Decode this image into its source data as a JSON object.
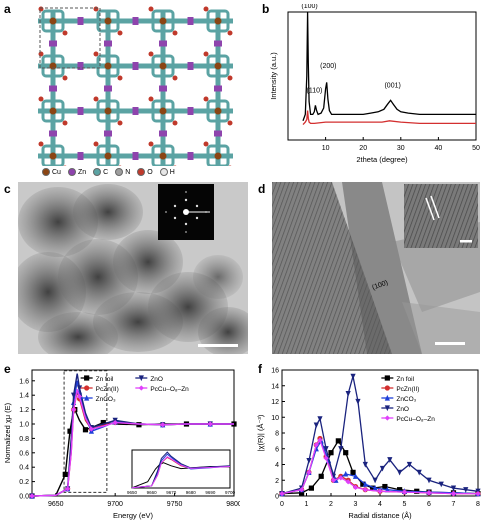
{
  "panels": {
    "a": {
      "label": "a",
      "legend": [
        {
          "symbol": "Cu",
          "color": "#8B4513"
        },
        {
          "symbol": "Zn",
          "color": "#8E44AD"
        },
        {
          "symbol": "C",
          "color": "#5BA3A3"
        },
        {
          "symbol": "N",
          "color": "#9E9E9E"
        },
        {
          "symbol": "O",
          "color": "#C0392B"
        },
        {
          "symbol": "H",
          "color": "#E6E6E6"
        }
      ]
    },
    "b": {
      "label": "b",
      "peak_labels": [
        "(100)",
        "(110)",
        "(200)",
        "(001)"
      ]
    },
    "c": {
      "label": "c"
    },
    "d": {
      "label": "d",
      "annotation": "(100)"
    },
    "e": {
      "label": "e"
    },
    "f": {
      "label": "f"
    }
  },
  "chart_data": [
    {
      "id": "b",
      "type": "line",
      "xlabel": "2theta (degree)",
      "ylabel": "Intensity (a.u.)",
      "xlim": [
        0,
        50
      ],
      "xticks": [
        10,
        20,
        30,
        40,
        50
      ],
      "series": [
        {
          "color": "#000000",
          "x": [
            4.0,
            4.6,
            5.0,
            5.2,
            5.4,
            5.6,
            6.0,
            6.6,
            7.0,
            7.3,
            7.6,
            8.0,
            8.8,
            9.5,
            10.0,
            10.3,
            10.6,
            11.0,
            11.6,
            12.5,
            14,
            16,
            18,
            20,
            22,
            24,
            25.5,
            26.5,
            27.3,
            28.0,
            29,
            30,
            32,
            35,
            40,
            45,
            50
          ],
          "y": [
            0.15,
            0.2,
            0.5,
            1.0,
            0.6,
            0.3,
            0.2,
            0.2,
            0.22,
            0.27,
            0.23,
            0.2,
            0.21,
            0.25,
            0.4,
            0.45,
            0.32,
            0.23,
            0.2,
            0.2,
            0.2,
            0.2,
            0.2,
            0.2,
            0.21,
            0.22,
            0.24,
            0.28,
            0.31,
            0.28,
            0.24,
            0.22,
            0.21,
            0.2,
            0.2,
            0.2,
            0.2
          ]
        },
        {
          "color": "#D32F2F",
          "x": [
            4.0,
            4.6,
            5.0,
            5.2,
            5.4,
            5.6,
            6.0,
            7,
            10,
            15,
            20,
            25,
            27,
            30,
            35,
            40,
            45,
            50
          ],
          "y": [
            0.12,
            0.14,
            0.16,
            0.23,
            0.17,
            0.14,
            0.13,
            0.13,
            0.14,
            0.14,
            0.14,
            0.14,
            0.15,
            0.14,
            0.13,
            0.13,
            0.13,
            0.13
          ]
        }
      ]
    },
    {
      "id": "e",
      "type": "line",
      "xlabel": "Energy (eV)",
      "ylabel": "Normalized χμ (E)",
      "xlim": [
        9630,
        9800
      ],
      "ylim": [
        0,
        1.75
      ],
      "xticks": [
        9650,
        9700,
        9750,
        9800
      ],
      "yticks": [
        0.0,
        0.2,
        0.4,
        0.6,
        0.8,
        1.0,
        1.2,
        1.4,
        1.6
      ],
      "legend": [
        "Zn foil",
        "PcZn(II)",
        "ZnCO₃",
        "ZnO",
        "PcCu–O₈–Zn"
      ],
      "inset_xticks": [
        "9650",
        "9660",
        "9670",
        "9680",
        "9690",
        "9700"
      ],
      "series": [
        {
          "name": "Zn foil",
          "color": "#000000",
          "marker": "square",
          "x": [
            9630,
            9650,
            9658,
            9660,
            9662,
            9664,
            9666,
            9670,
            9675,
            9680,
            9690,
            9700,
            9720,
            9740,
            9760,
            9780,
            9800
          ],
          "y": [
            0.0,
            0.01,
            0.3,
            0.6,
            0.9,
            1.1,
            1.2,
            1.05,
            0.92,
            0.95,
            1.02,
            1.0,
            0.99,
            1.0,
            1.0,
            1.0,
            1.0
          ]
        },
        {
          "name": "PcZn(II)",
          "color": "#D32F2F",
          "marker": "circle",
          "x": [
            9630,
            9650,
            9660,
            9663,
            9665,
            9668,
            9670,
            9675,
            9680,
            9690,
            9700,
            9720,
            9740,
            9760,
            9780,
            9800
          ],
          "y": [
            0.0,
            0.01,
            0.1,
            0.6,
            1.2,
            1.45,
            1.35,
            1.05,
            0.93,
            0.98,
            1.02,
            1.0,
            0.99,
            1.0,
            1.0,
            1.0
          ]
        },
        {
          "name": "ZnCO₃",
          "color": "#1E3FD9",
          "marker": "triangle",
          "x": [
            9630,
            9650,
            9660,
            9663,
            9665,
            9668,
            9670,
            9675,
            9680,
            9690,
            9700,
            9720,
            9740,
            9760,
            9780,
            9800
          ],
          "y": [
            0.0,
            0.01,
            0.1,
            0.7,
            1.3,
            1.6,
            1.45,
            1.1,
            0.9,
            0.96,
            1.03,
            1.0,
            0.99,
            1.0,
            1.0,
            1.0
          ]
        },
        {
          "name": "ZnO",
          "color": "#1A237E",
          "marker": "invtriangle",
          "x": [
            9630,
            9650,
            9660,
            9663,
            9665,
            9668,
            9670,
            9675,
            9680,
            9690,
            9700,
            9720,
            9740,
            9760,
            9780,
            9800
          ],
          "y": [
            0.0,
            0.01,
            0.1,
            0.8,
            1.4,
            1.7,
            1.5,
            1.15,
            0.95,
            1.0,
            1.05,
            1.0,
            0.99,
            1.0,
            1.0,
            1.0
          ]
        },
        {
          "name": "PcCu–O₈–Zn",
          "color": "#E040FB",
          "marker": "diamond",
          "x": [
            9630,
            9650,
            9660,
            9663,
            9665,
            9668,
            9670,
            9675,
            9680,
            9690,
            9700,
            9720,
            9740,
            9760,
            9780,
            9800
          ],
          "y": [
            0.0,
            0.01,
            0.1,
            0.6,
            1.2,
            1.48,
            1.38,
            1.08,
            0.93,
            0.97,
            1.02,
            1.0,
            0.99,
            1.0,
            1.0,
            1.0
          ]
        }
      ]
    },
    {
      "id": "f",
      "type": "line",
      "xlabel": "Radial distance (Å)",
      "ylabel": "|χ(R)| (Å⁻³)",
      "xlim": [
        0,
        8
      ],
      "ylim": [
        0,
        16
      ],
      "xticks": [
        0,
        1,
        2,
        3,
        4,
        5,
        6,
        7,
        8
      ],
      "yticks": [
        0,
        2,
        4,
        6,
        8,
        10,
        12,
        14,
        16
      ],
      "legend": [
        "Zn foil",
        "PcZn(II)",
        "ZnCO₃",
        "ZnO",
        "PcCu–O₈–Zn"
      ],
      "series": [
        {
          "name": "Zn foil",
          "color": "#000000",
          "marker": "square",
          "x": [
            0,
            0.8,
            1.2,
            1.6,
            2.0,
            2.3,
            2.6,
            2.9,
            3.3,
            3.7,
            4.2,
            4.8,
            5.5,
            6,
            7,
            8
          ],
          "y": [
            0.3,
            0.4,
            1.0,
            2.5,
            5.5,
            7.0,
            5.5,
            3.0,
            1.5,
            1.0,
            1.2,
            0.8,
            0.6,
            0.5,
            0.4,
            0.3
          ]
        },
        {
          "name": "PcZn(II)",
          "color": "#D32F2F",
          "marker": "circle",
          "x": [
            0,
            0.8,
            1.1,
            1.4,
            1.55,
            1.8,
            2.1,
            2.4,
            2.7,
            3.0,
            3.4,
            4,
            5,
            6,
            7,
            8
          ],
          "y": [
            0.3,
            0.8,
            3.0,
            6.5,
            7.3,
            5.0,
            2.0,
            2.5,
            2.0,
            1.2,
            0.8,
            0.6,
            0.5,
            0.4,
            0.3,
            0.3
          ]
        },
        {
          "name": "ZnCO₃",
          "color": "#1E3FD9",
          "marker": "triangle",
          "x": [
            0,
            0.8,
            1.1,
            1.4,
            1.6,
            1.9,
            2.2,
            2.6,
            3.0,
            3.4,
            3.8,
            4.3,
            5,
            6,
            7,
            8
          ],
          "y": [
            0.3,
            0.8,
            3.0,
            6.0,
            7.0,
            4.5,
            2.0,
            2.8,
            2.5,
            1.5,
            1.0,
            0.8,
            0.6,
            0.5,
            0.4,
            0.3
          ]
        },
        {
          "name": "ZnO",
          "color": "#1A237E",
          "marker": "invtriangle",
          "x": [
            0,
            0.8,
            1.1,
            1.4,
            1.55,
            1.8,
            2.1,
            2.4,
            2.7,
            2.9,
            3.1,
            3.4,
            3.8,
            4.1,
            4.4,
            4.8,
            5.2,
            5.6,
            6.0,
            6.5,
            7,
            7.5,
            8
          ],
          "y": [
            0.3,
            1.0,
            4.5,
            9.0,
            9.8,
            6.0,
            2.5,
            6.0,
            13.0,
            15.2,
            12.0,
            4.0,
            2.0,
            3.5,
            4.6,
            3.0,
            4.0,
            3.0,
            2.0,
            1.5,
            1.0,
            0.8,
            0.6
          ]
        },
        {
          "name": "PcCu–O₈–Zn",
          "color": "#E040FB",
          "marker": "diamond",
          "x": [
            0,
            0.8,
            1.1,
            1.4,
            1.55,
            1.8,
            2.1,
            2.4,
            2.7,
            3.0,
            3.4,
            4,
            5,
            6,
            7,
            8
          ],
          "y": [
            0.3,
            0.8,
            3.0,
            6.5,
            7.1,
            4.8,
            2.0,
            2.3,
            1.8,
            1.1,
            0.8,
            0.6,
            0.5,
            0.4,
            0.3,
            0.3
          ]
        }
      ]
    }
  ]
}
